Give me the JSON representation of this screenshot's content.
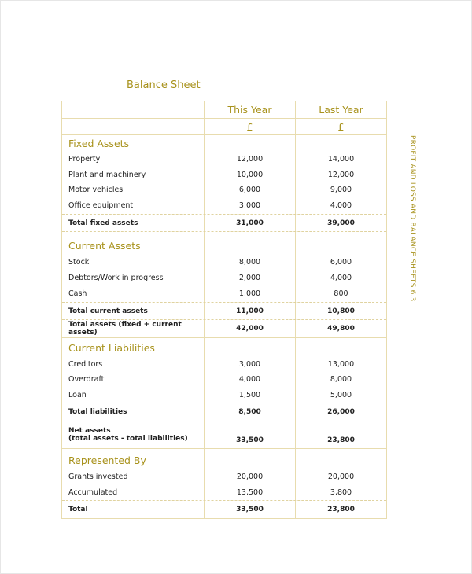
{
  "title": "Balance Sheet",
  "side_label": "PROFIT AND LOSS AND BALANCE SHEETS 6.3",
  "colors": {
    "accent": "#a8921c",
    "border": "#e8dcae"
  },
  "header": {
    "this_year": "This Year",
    "last_year": "Last Year",
    "currency_this": "£",
    "currency_last": "£"
  },
  "rows": [
    {
      "kind": "heading",
      "label": "Fixed Assets"
    },
    {
      "kind": "item",
      "label": "Property",
      "this": "12,000",
      "last": "14,000"
    },
    {
      "kind": "item",
      "label": "Plant and machinery",
      "this": "10,000",
      "last": "12,000"
    },
    {
      "kind": "item",
      "label": "Motor vehicles",
      "this": "6,000",
      "last": "9,000"
    },
    {
      "kind": "item",
      "label": "Office equipment",
      "this": "3,000",
      "last": "4,000"
    },
    {
      "kind": "total",
      "label": "Total fixed assets",
      "this": "31,000",
      "last": "39,000"
    },
    {
      "kind": "heading",
      "label": "Current Assets"
    },
    {
      "kind": "item",
      "label": "Stock",
      "this": "8,000",
      "last": "6,000"
    },
    {
      "kind": "item",
      "label": "Debtors/Work in progress",
      "this": "2,000",
      "last": "4,000"
    },
    {
      "kind": "item",
      "label": "Cash",
      "this": "1,000",
      "last": "800"
    },
    {
      "kind": "total",
      "label": "Total current assets",
      "this": "11,000",
      "last": "10,800"
    },
    {
      "kind": "total",
      "label": "Total assets (fixed + current assets)",
      "this": "42,000",
      "last": "49,800"
    },
    {
      "kind": "heading",
      "label": "Current Liabilities"
    },
    {
      "kind": "item",
      "label": "Creditors",
      "this": "3,000",
      "last": "13,000"
    },
    {
      "kind": "item",
      "label": "Overdraft",
      "this": "4,000",
      "last": "8,000"
    },
    {
      "kind": "item",
      "label": "Loan",
      "this": "1,500",
      "last": "5,000"
    },
    {
      "kind": "total",
      "label": "Total liabilities",
      "this": "8,500",
      "last": "26,000"
    },
    {
      "kind": "net",
      "label": "Net assets",
      "sublabel": "(total assets - total liabilities)",
      "this": "33,500",
      "last": "23,800"
    },
    {
      "kind": "heading",
      "label": "Represented By"
    },
    {
      "kind": "item",
      "label": "Grants invested",
      "this": "20,000",
      "last": "20,000"
    },
    {
      "kind": "item",
      "label": "Accumulated",
      "this": "13,500",
      "last": "3,800"
    },
    {
      "kind": "total",
      "label": "Total",
      "this": "33,500",
      "last": "23,800"
    }
  ]
}
